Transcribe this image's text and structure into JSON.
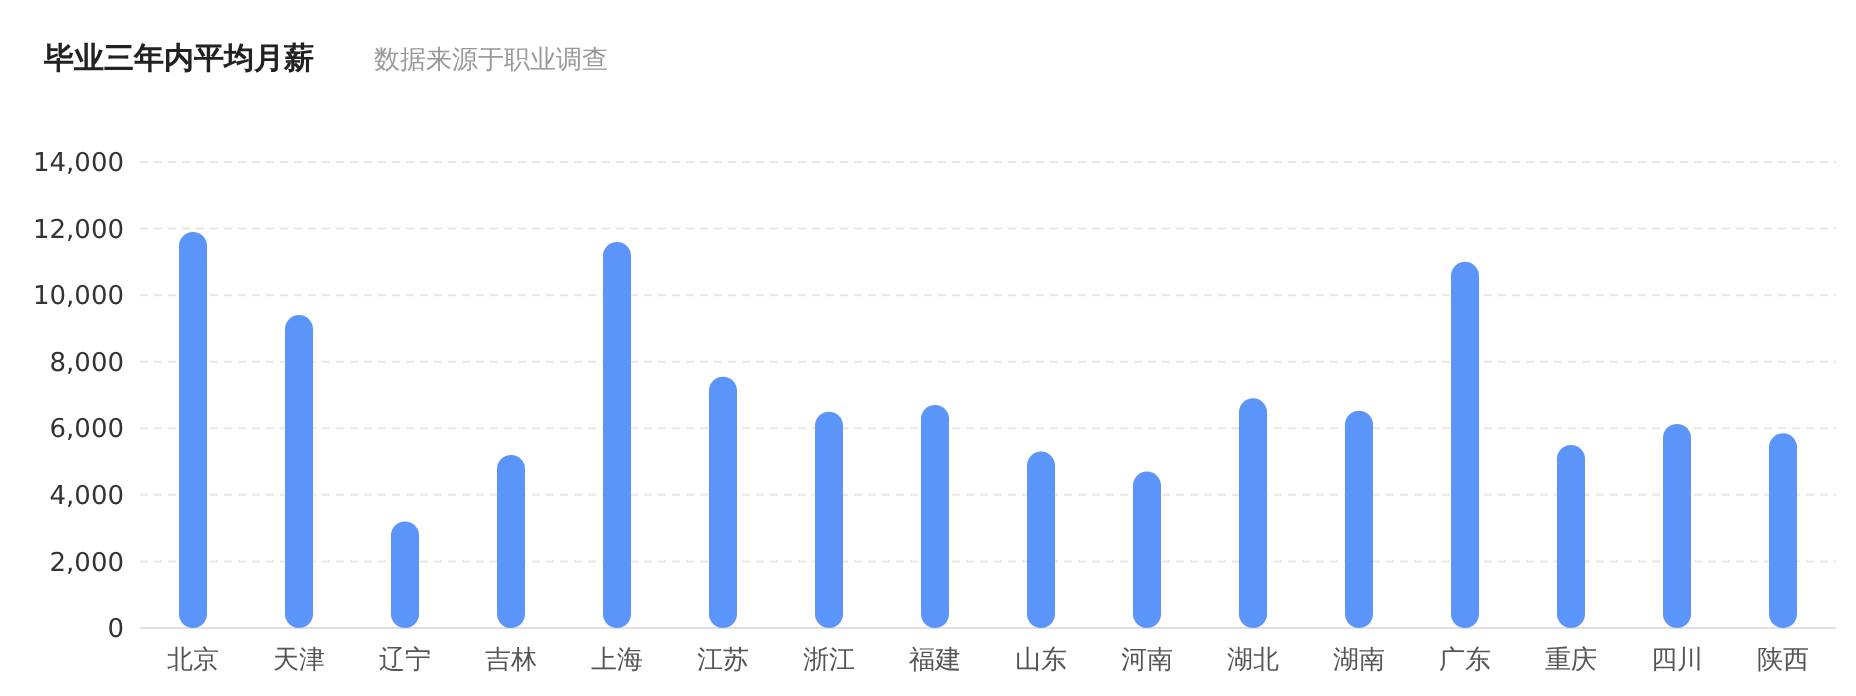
{
  "chart_data": {
    "type": "bar",
    "title": "毕业三年内平均月薪",
    "subtitle": "数据来源于职业调查",
    "categories": [
      "北京",
      "天津",
      "辽宁",
      "吉林",
      "上海",
      "江苏",
      "浙江",
      "福建",
      "山东",
      "河南",
      "湖北",
      "湖南",
      "广东",
      "重庆",
      "四川",
      "陕西"
    ],
    "values": [
      11900,
      9400,
      3200,
      5200,
      11600,
      7550,
      6500,
      6700,
      5300,
      4700,
      6900,
      6530,
      11000,
      5500,
      6130,
      5850
    ],
    "color": "#5b95f9",
    "ylim": [
      0,
      14000
    ],
    "yticks": [
      {
        "value": 0,
        "label": "0"
      },
      {
        "value": 2000,
        "label": "2,000"
      },
      {
        "value": 4000,
        "label": "4,000"
      },
      {
        "value": 6000,
        "label": "6,000"
      },
      {
        "value": 8000,
        "label": "8,000"
      },
      {
        "value": 10000,
        "label": "10,000"
      },
      {
        "value": 12000,
        "label": "12,000"
      },
      {
        "value": 14000,
        "label": "14,000"
      }
    ],
    "grid": "y"
  }
}
